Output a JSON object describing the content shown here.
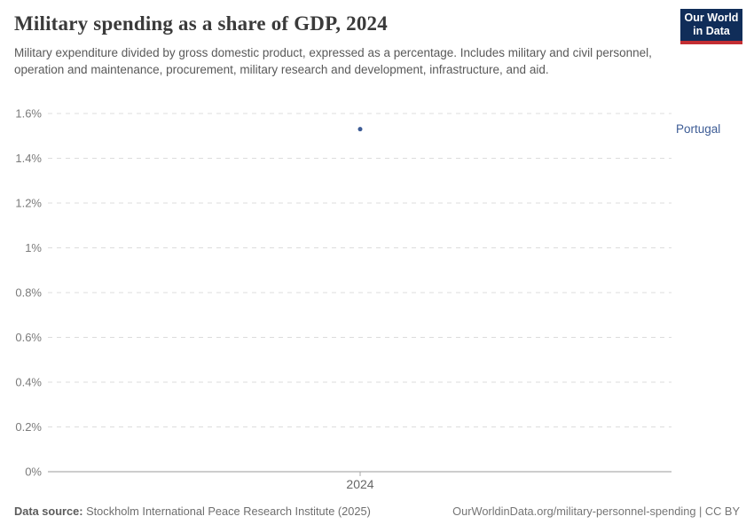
{
  "header": {
    "title": "Military spending as a share of GDP, 2024",
    "subtitle": "Military expenditure divided by gross domestic product, expressed as a percentage. Includes military and civil personnel, operation and maintenance, procurement, military research and development, infrastructure, and aid.",
    "logo": {
      "line1": "Our World",
      "line2": "in Data",
      "bg_color": "#102d59",
      "accent_color": "#c32e33"
    }
  },
  "chart_data": {
    "type": "scatter",
    "title": "Military spending as a share of GDP, 2024",
    "x": [
      2024
    ],
    "x_tick_labels": [
      "2024"
    ],
    "series": [
      {
        "name": "Portugal",
        "values": [
          1.53
        ],
        "color": "#3d5c95"
      }
    ],
    "xlabel": "",
    "ylabel": "",
    "ylim": [
      0,
      1.6
    ],
    "y_ticks": [
      0,
      0.2,
      0.4,
      0.6,
      0.8,
      1.0,
      1.2,
      1.4,
      1.6
    ],
    "y_tick_labels": [
      "0%",
      "0.2%",
      "0.4%",
      "0.6%",
      "0.8%",
      "1%",
      "1.2%",
      "1.4%",
      "1.6%"
    ],
    "grid": "horizontal-dashed",
    "legend_position": "right-entity-label",
    "entity_label": "Portugal"
  },
  "footer": {
    "source_label": "Data source:",
    "source_text": " Stockholm International Peace Research Institute (2025)",
    "link_text": "OurWorldinData.org/military-personnel-spending | CC BY"
  }
}
